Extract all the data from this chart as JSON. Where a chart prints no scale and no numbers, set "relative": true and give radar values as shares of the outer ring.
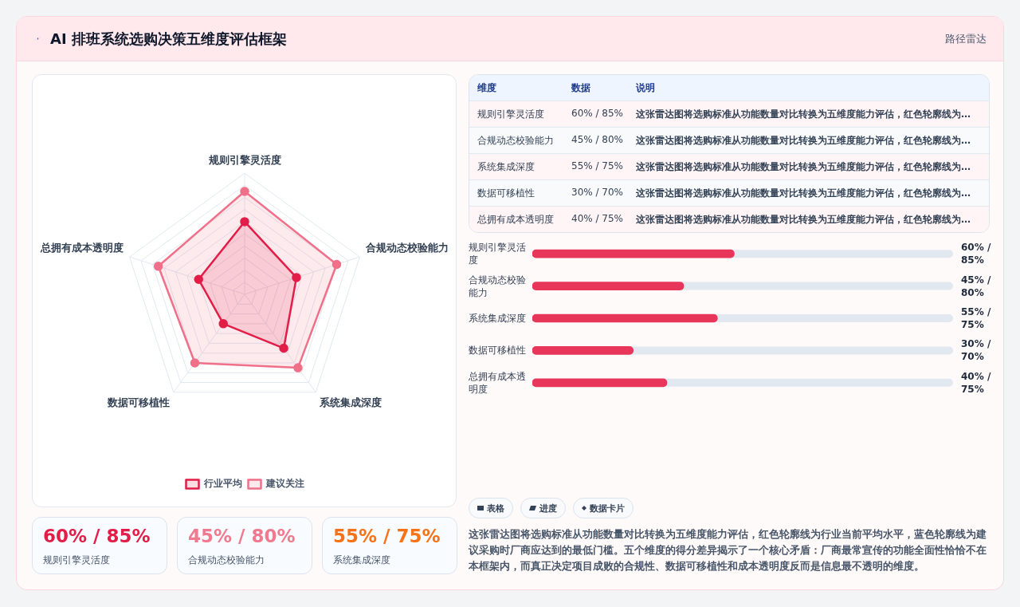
{
  "chart_data": [
    {
      "type": "other",
      "title": "AI 排班系统选购决策五维度评估框架",
      "subtitle": "路径雷达"
    },
    {
      "type": "radar",
      "categories": [
        "规则引擎灵活度",
        "合规动态校验能力",
        "系统集成深度",
        "数据可移植性",
        "总拥有成本透明度"
      ],
      "relative": true,
      "grid": true,
      "legend": "bottom",
      "marker": "circle",
      "series": [
        {
          "name": "行业平均",
          "color": "#e11d48",
          "values": [
            0.6,
            0.45,
            0.55,
            0.3,
            0.4
          ]
        },
        {
          "name": "建议关注",
          "color": "#f07089",
          "values": [
            0.85,
            0.8,
            0.75,
            0.7,
            0.75
          ]
        }
      ]
    },
    {
      "type": "bar",
      "orientation": "horizontal",
      "xlim": [
        0,
        125
      ],
      "categories": [
        "规则引擎灵活度",
        "合规动态校验能力",
        "系统集成深度",
        "数据可移植性",
        "总拥有成本透明度"
      ],
      "color": "#e8365b",
      "values": [
        60,
        45,
        55,
        30,
        40
      ],
      "value_labels": [
        "60% / 85%",
        "45% / 80%",
        "55% / 75%",
        "30% / 70%",
        "40% / 75%"
      ]
    },
    {
      "type": "other",
      "annotations": [
        "维度",
        "数据",
        "说明",
        "规则引擎灵活度",
        "60% / 85%",
        "这张雷达图将选购标准从功能数量对比转换为五维度能力评估，红色轮廓线为…",
        "合规动态校验能力",
        "45% / 80%",
        "这张雷达图将选购标准从功能数量对比转换为五维度能力评估，红色轮廓线为…",
        "系统集成深度",
        "55% / 75%",
        "这张雷达图将选购标准从功能数量对比转换为五维度能力评估，红色轮廓线为…",
        "数据可移植性",
        "30% / 70%",
        "这张雷达图将选购标准从功能数量对比转换为五维度能力评估，红色轮廓线为…",
        "总拥有成本透明度",
        "40% / 75%",
        "这张雷达图将选购标准从功能数量对比转换为五维度能力评估，红色轮廓线为…"
      ]
    },
    {
      "type": "other",
      "annotations": [
        "表格",
        "进度",
        "数据卡片"
      ]
    },
    {
      "type": "other",
      "colors": [
        "#e11d48",
        "#f07a8e",
        "#f97316"
      ],
      "annotations": [
        "60% / 85%",
        "规则引擎灵活度",
        "45% / 80%",
        "合规动态校验能力",
        "55% / 75%",
        "系统集成深度"
      ]
    },
    {
      "type": "other",
      "annotations": [
        "这张雷达图将选购标准从功能数量对比转换为五维度能力评估，红色轮廓线为行业当前平均水平，蓝色轮廓线为建议采购时厂商应达到的最低门槛。五个维度的得分差异揭示了一个核心矛盾：厂商最常宣传的功能全面性恰恰不在本框架内，而真正决定项目成败的合规性、数据可移植性和成本透明度反而是信息最不透明的维度。"
      ]
    }
  ]
}
